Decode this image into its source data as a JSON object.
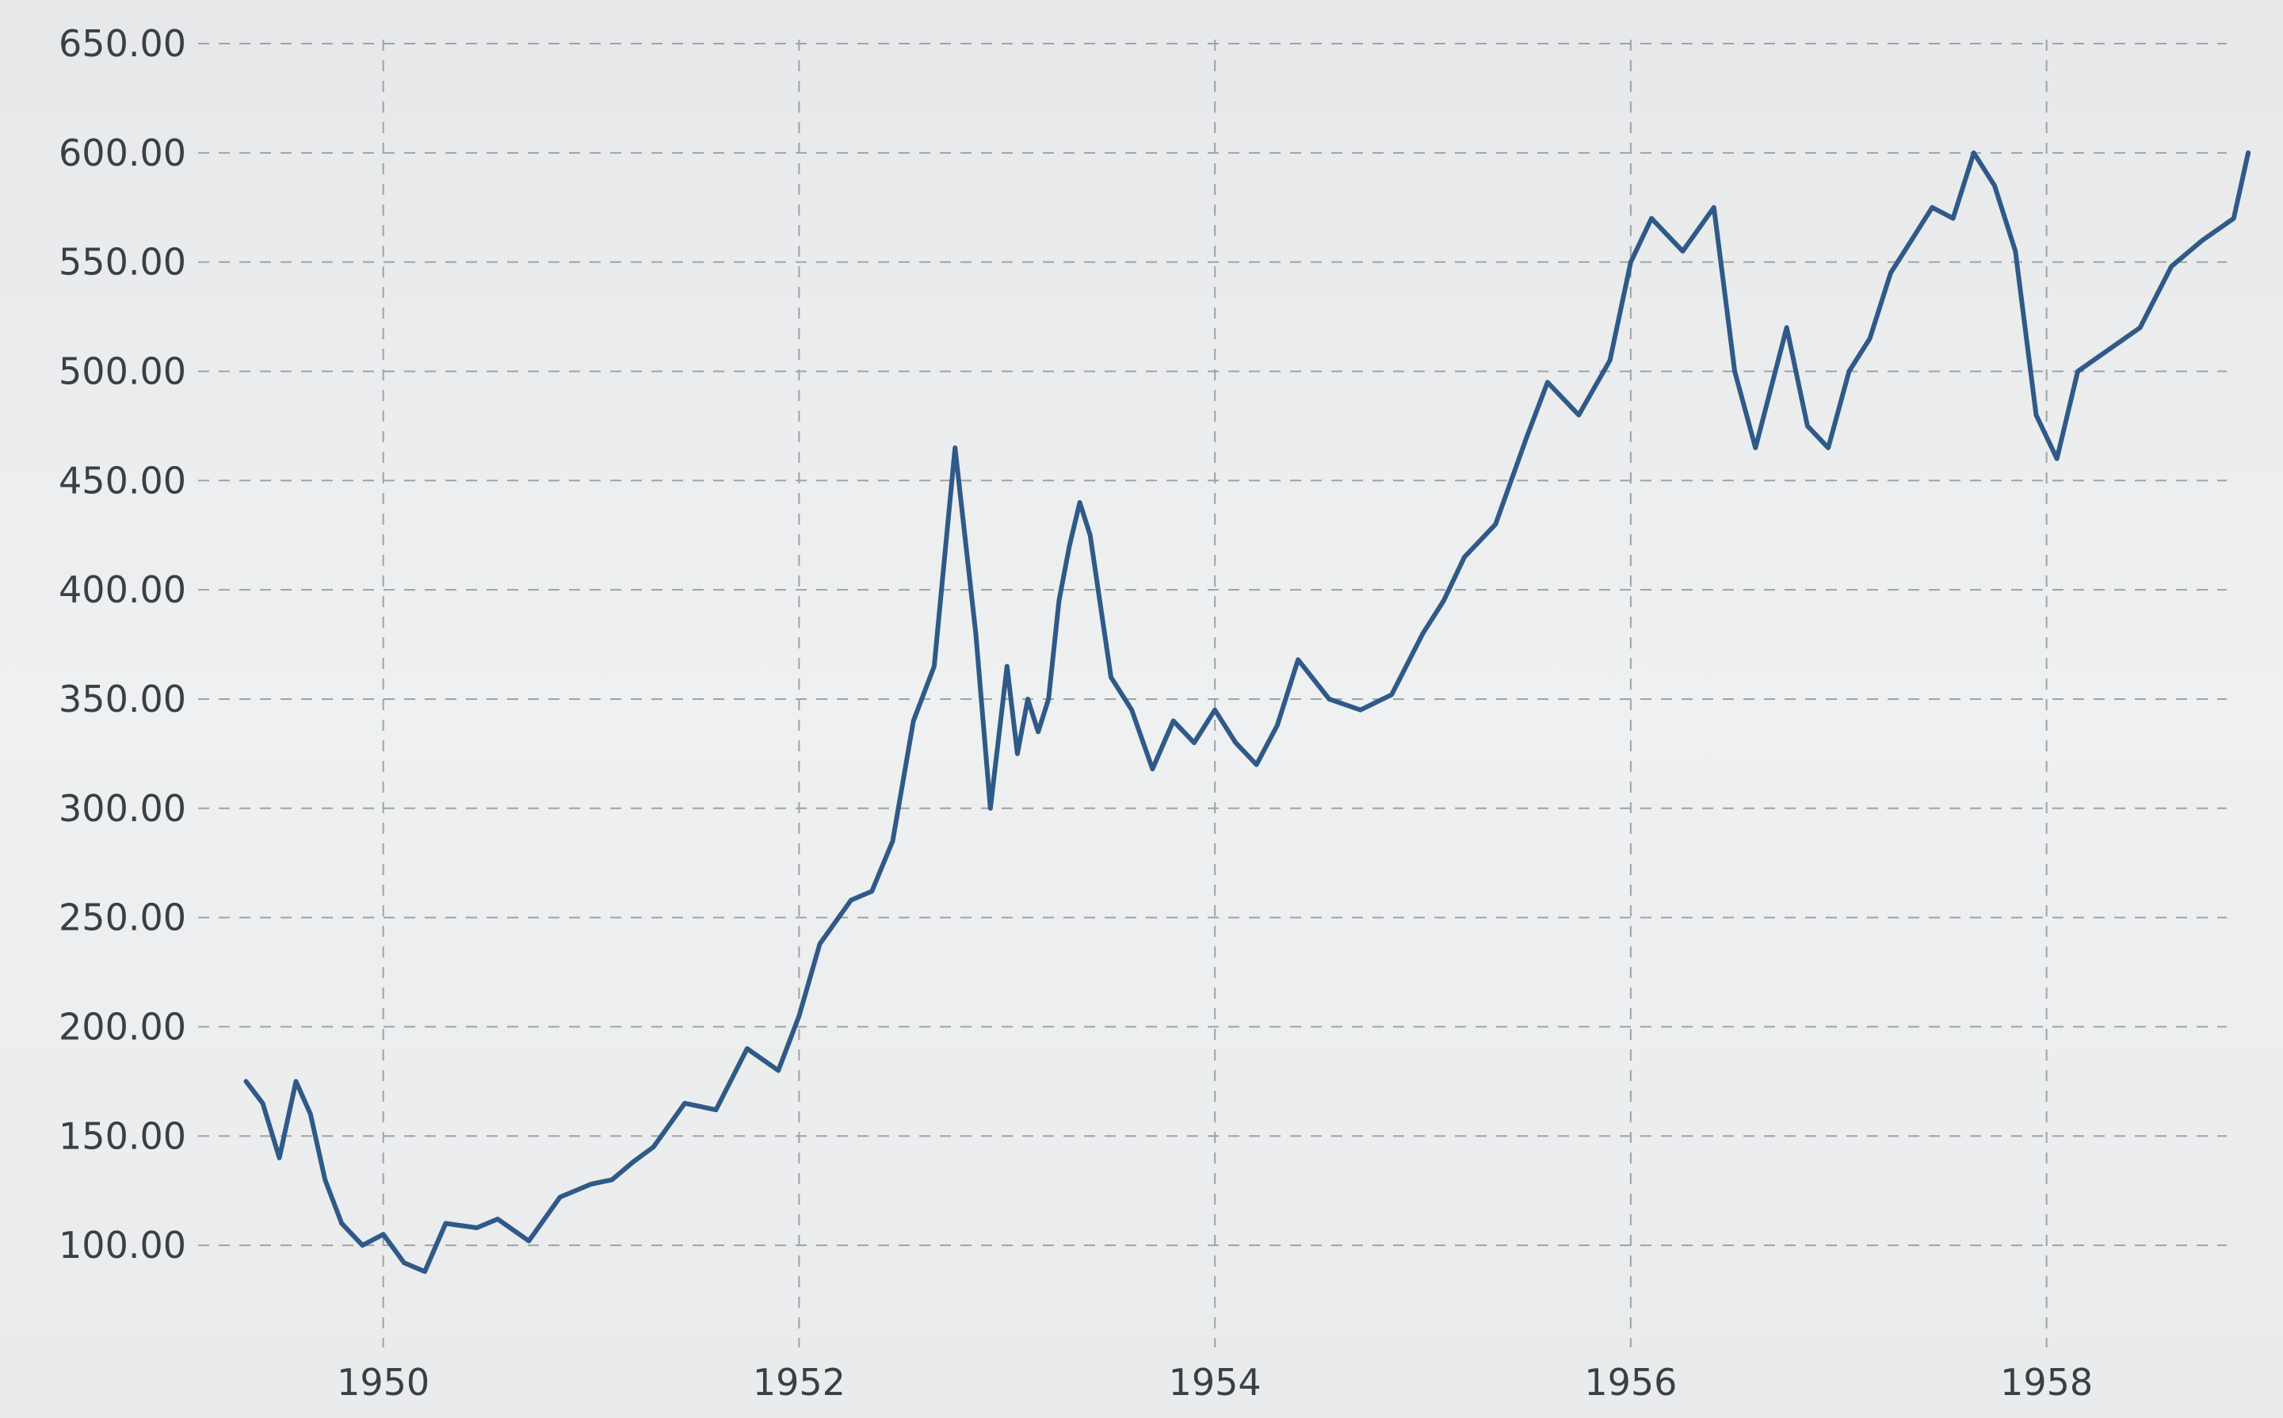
{
  "chart_data": {
    "type": "line",
    "title": "",
    "xlabel": "",
    "ylabel": "",
    "grid": true,
    "legend": "none",
    "line_color": "#2f5a88",
    "y_ticks": [
      "100.00",
      "150.00",
      "200.00",
      "250.00",
      "300.00",
      "350.00",
      "400.00",
      "450.00",
      "500.00",
      "550.00",
      "600.00",
      "650.00"
    ],
    "x_ticks": [
      "1950",
      "1952",
      "1954",
      "1956",
      "1958"
    ],
    "ylim": [
      75,
      650
    ],
    "xlim": [
      1949.3,
      1959.0
    ],
    "series": [
      {
        "name": "",
        "x": [
          1949.34,
          1949.42,
          1949.5,
          1949.58,
          1949.65,
          1949.72,
          1949.8,
          1949.9,
          1950.0,
          1950.1,
          1950.2,
          1950.3,
          1950.45,
          1950.55,
          1950.7,
          1950.85,
          1951.0,
          1951.1,
          1951.2,
          1951.3,
          1951.45,
          1951.6,
          1951.75,
          1951.9,
          1952.0,
          1952.1,
          1952.25,
          1952.35,
          1952.45,
          1952.55,
          1952.65,
          1952.75,
          1952.85,
          1952.92,
          1953.0,
          1953.05,
          1953.1,
          1953.15,
          1953.2,
          1953.25,
          1953.3,
          1953.35,
          1953.4,
          1953.5,
          1953.6,
          1953.7,
          1953.8,
          1953.9,
          1954.0,
          1954.1,
          1954.2,
          1954.3,
          1954.4,
          1954.55,
          1954.7,
          1954.85,
          1955.0,
          1955.1,
          1955.2,
          1955.35,
          1955.5,
          1955.6,
          1955.75,
          1955.9,
          1956.0,
          1956.1,
          1956.25,
          1956.4,
          1956.5,
          1956.6,
          1956.75,
          1956.85,
          1956.95,
          1957.05,
          1957.15,
          1957.25,
          1957.35,
          1957.45,
          1957.55,
          1957.65,
          1957.75,
          1957.85,
          1957.95,
          1958.05,
          1958.15,
          1958.3,
          1958.45,
          1958.6,
          1958.75,
          1958.9,
          1958.97
        ],
        "y": [
          175,
          165,
          140,
          175,
          160,
          130,
          110,
          100,
          105,
          92,
          88,
          110,
          108,
          112,
          102,
          122,
          128,
          130,
          138,
          145,
          165,
          162,
          190,
          180,
          205,
          238,
          258,
          262,
          285,
          340,
          365,
          465,
          380,
          300,
          365,
          325,
          350,
          335,
          350,
          395,
          420,
          440,
          425,
          360,
          345,
          318,
          340,
          330,
          345,
          330,
          320,
          338,
          368,
          350,
          345,
          352,
          380,
          395,
          415,
          430,
          470,
          495,
          480,
          505,
          550,
          570,
          555,
          575,
          500,
          465,
          520,
          475,
          465,
          500,
          515,
          545,
          560,
          575,
          570,
          600,
          585,
          555,
          480,
          460,
          500,
          510,
          520,
          548,
          560,
          570,
          600
        ]
      }
    ]
  }
}
